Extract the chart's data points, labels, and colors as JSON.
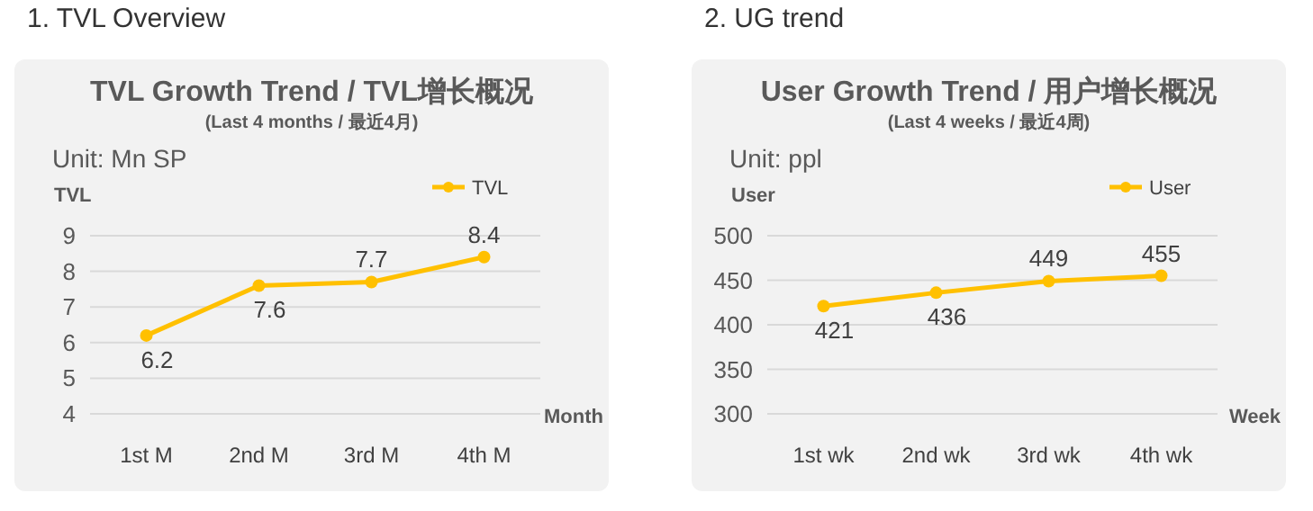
{
  "chart_data": [
    {
      "type": "line",
      "title": "TVL Growth Trend / TVL增长概况",
      "subtitle": "(Last 4 months / 最近4月)",
      "annotations": [
        "1.  TVL Overview",
        "Unit: Mn SP"
      ],
      "ylabel": "TVL",
      "xlabel": "Month",
      "categories": [
        "1st M",
        "2nd M",
        "3rd M",
        "4th M"
      ],
      "series": [
        {
          "name": "TVL",
          "color": "#ffc000",
          "values": [
            6.2,
            7.6,
            7.7,
            8.4
          ]
        }
      ],
      "ylim": [
        4,
        9
      ],
      "yticks": [
        4,
        5,
        6,
        7,
        8,
        9
      ],
      "grid": "y",
      "legend": "top right",
      "marker": "circle",
      "data_labels": true
    },
    {
      "type": "line",
      "title": "User Growth Trend / 用户增长概况",
      "subtitle": "(Last 4 weeks / 最近4周)",
      "annotations": [
        "2. UG trend",
        "Unit: ppl"
      ],
      "ylabel": "User",
      "xlabel": "Week",
      "categories": [
        "1st wk",
        "2nd wk",
        "3rd wk",
        "4th wk"
      ],
      "series": [
        {
          "name": "User",
          "color": "#ffc000",
          "values": [
            421,
            436,
            449,
            455
          ]
        }
      ],
      "ylim": [
        300,
        500
      ],
      "yticks": [
        300,
        350,
        400,
        450,
        500
      ],
      "grid": "y",
      "legend": "top right",
      "marker": "circle",
      "data_labels": true
    }
  ]
}
